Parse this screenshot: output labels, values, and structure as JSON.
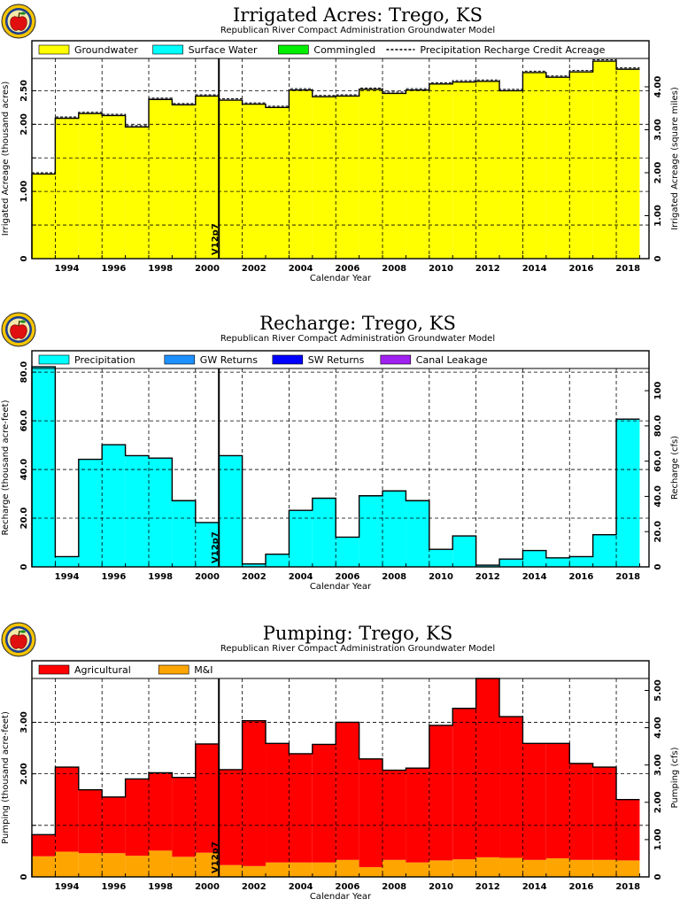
{
  "chart_data": [
    {
      "type": "bar",
      "title": "Irrigated Acres: Trego, KS",
      "subtitle": "Republican River Compact Administration Groundwater Model",
      "xlabel": "Calendar Year",
      "ylabel": "Irrigated Acreage (thousand acres)",
      "y2label": "Irrigated Acreage (square miles)",
      "marker_label": "V12p7",
      "marker_x": 2000.5,
      "grid": true,
      "legend_position": "top",
      "legend": [
        {
          "name": "Groundwater",
          "color": "#ffff00",
          "kind": "box"
        },
        {
          "name": "Surface Water",
          "color": "#00ffff",
          "kind": "box"
        },
        {
          "name": "Commingled",
          "color": "#00ee00",
          "kind": "box"
        },
        {
          "name": "Precipitation Recharge Credit Acreage",
          "kind": "dash"
        }
      ],
      "xlim": [
        1992.5,
        2018.9
      ],
      "ylim": [
        0,
        2.98
      ],
      "y2lim": [
        0,
        4.66
      ],
      "x_ticks": [
        1994,
        1996,
        1998,
        2000,
        2002,
        2004,
        2006,
        2008,
        2010,
        2012,
        2014,
        2016,
        2018
      ],
      "y_ticks": [
        0,
        0.5,
        1.0,
        1.5,
        2.0,
        2.5
      ],
      "y_tick_labels": [
        "0",
        "",
        "1.00",
        "",
        "2.00",
        "2.50"
      ],
      "y2_ticks": [
        0,
        1.0,
        2.0,
        3.0,
        4.0
      ],
      "y2_tick_labels": [
        "0",
        "1.00",
        "2.00",
        "3.00",
        "4.00"
      ],
      "years": [
        1993,
        1994,
        1995,
        1996,
        1997,
        1998,
        1999,
        2000,
        2001,
        2002,
        2003,
        2004,
        2005,
        2006,
        2007,
        2008,
        2009,
        2010,
        2011,
        2012,
        2013,
        2014,
        2015,
        2016,
        2017,
        2018
      ],
      "series": [
        {
          "name": "Groundwater",
          "color": "#ffff00",
          "values": [
            1.26,
            2.09,
            2.16,
            2.13,
            1.96,
            2.37,
            2.29,
            2.42,
            2.36,
            2.3,
            2.25,
            2.51,
            2.41,
            2.42,
            2.52,
            2.46,
            2.51,
            2.6,
            2.63,
            2.64,
            2.5,
            2.77,
            2.7,
            2.78,
            2.94,
            2.82
          ]
        }
      ]
    },
    {
      "type": "bar",
      "title": "Recharge: Trego, KS",
      "subtitle": "Republican River Compact Administration Groundwater Model",
      "xlabel": "Calendar Year",
      "ylabel": "Recharge (thousand acre-feet)",
      "y2label": "Recharge (cfs)",
      "marker_label": "V12p7",
      "marker_x": 2000.5,
      "grid": true,
      "legend_position": "top",
      "legend": [
        {
          "name": "Precipitation",
          "color": "#00ffff",
          "kind": "box"
        },
        {
          "name": "GW Returns",
          "color": "#1e90ff",
          "kind": "box"
        },
        {
          "name": "SW Returns",
          "color": "#0000ff",
          "kind": "box"
        },
        {
          "name": "Canal Leakage",
          "color": "#a020f0",
          "kind": "box"
        }
      ],
      "xlim": [
        1992.5,
        2018.9
      ],
      "ylim": [
        0,
        81.5
      ],
      "y2lim": [
        0,
        112.6
      ],
      "x_ticks": [
        1994,
        1996,
        1998,
        2000,
        2002,
        2004,
        2006,
        2008,
        2010,
        2012,
        2014,
        2016,
        2018
      ],
      "y_ticks": [
        0,
        20,
        40,
        60,
        80
      ],
      "y_tick_labels": [
        "0",
        "20.0",
        "40.0",
        "60.0",
        "80.0"
      ],
      "y2_ticks": [
        0,
        20,
        40,
        60,
        80,
        100
      ],
      "y2_tick_labels": [
        "0",
        "20.0",
        "40.0",
        "60.0",
        "80.0",
        "100"
      ],
      "years": [
        1993,
        1994,
        1995,
        1996,
        1997,
        1998,
        1999,
        2000,
        2001,
        2002,
        2003,
        2004,
        2005,
        2006,
        2007,
        2008,
        2009,
        2010,
        2011,
        2012,
        2013,
        2014,
        2015,
        2016,
        2017,
        2018
      ],
      "series": [
        {
          "name": "Precipitation",
          "color": "#00ffff",
          "values": [
            82.0,
            4.0,
            44.0,
            50.0,
            45.5,
            44.5,
            27.0,
            18.0,
            45.5,
            1.0,
            5.0,
            23.0,
            28.0,
            12.0,
            29.0,
            31.0,
            27.0,
            7.0,
            12.5,
            0.5,
            3.0,
            6.5,
            3.5,
            4.0,
            13.0,
            60.5
          ]
        },
        {
          "name": "GW Returns",
          "color": "#1e90ff",
          "values": [
            0.2,
            0.2,
            0.2,
            0.2,
            0.2,
            0.2,
            0.2,
            0.2,
            0.2,
            0.2,
            0.2,
            0.2,
            0.2,
            0.2,
            0.2,
            0.2,
            0.2,
            0.2,
            0.2,
            0.2,
            0.2,
            0.2,
            0.2,
            0.2,
            0.2,
            0.2
          ]
        }
      ]
    },
    {
      "type": "bar",
      "title": "Pumping: Trego, KS",
      "subtitle": "Republican River Compact Administration Groundwater Model",
      "xlabel": "Calendar Year",
      "ylabel": "Pumping (thousand acre-feet)",
      "y2label": "Pumping (cfs)",
      "marker_label": "V12p7",
      "marker_x": 2000.5,
      "grid": true,
      "legend_position": "top",
      "legend": [
        {
          "name": "Agricultural",
          "color": "#ff0000",
          "kind": "box"
        },
        {
          "name": "M&I",
          "color": "#ffa500",
          "kind": "box"
        }
      ],
      "xlim": [
        1992.5,
        2018.9
      ],
      "ylim": [
        0,
        3.85
      ],
      "y2lim": [
        0,
        5.32
      ],
      "x_ticks": [
        1994,
        1996,
        1998,
        2000,
        2002,
        2004,
        2006,
        2008,
        2010,
        2012,
        2014,
        2016,
        2018
      ],
      "y_ticks": [
        0,
        1.0,
        2.0,
        3.0
      ],
      "y_tick_labels": [
        "0",
        "",
        "2.00",
        "3.00"
      ],
      "y2_ticks": [
        0,
        1.0,
        2.0,
        3.0,
        4.0,
        5.0
      ],
      "y2_tick_labels": [
        "0",
        "1.00",
        "2.00",
        "3.00",
        "4.00",
        "5.00"
      ],
      "years": [
        1993,
        1994,
        1995,
        1996,
        1997,
        1998,
        1999,
        2000,
        2001,
        2002,
        2003,
        2004,
        2005,
        2006,
        2007,
        2008,
        2009,
        2010,
        2011,
        2012,
        2013,
        2014,
        2015,
        2016,
        2017,
        2018
      ],
      "series": [
        {
          "name": "M&I",
          "color": "#ffa500",
          "values": [
            0.4,
            0.49,
            0.46,
            0.46,
            0.41,
            0.51,
            0.39,
            0.47,
            0.23,
            0.21,
            0.28,
            0.28,
            0.28,
            0.33,
            0.19,
            0.33,
            0.28,
            0.32,
            0.34,
            0.38,
            0.37,
            0.33,
            0.36,
            0.33,
            0.33,
            0.32
          ]
        },
        {
          "name": "Agricultural",
          "color": "#ff0000",
          "values": [
            0.42,
            1.64,
            1.23,
            1.09,
            1.49,
            1.51,
            1.54,
            2.11,
            1.85,
            2.82,
            2.31,
            2.11,
            2.29,
            2.67,
            2.1,
            1.74,
            1.83,
            2.62,
            2.93,
            3.47,
            2.74,
            2.26,
            2.23,
            1.87,
            1.8,
            1.18
          ]
        }
      ]
    }
  ]
}
